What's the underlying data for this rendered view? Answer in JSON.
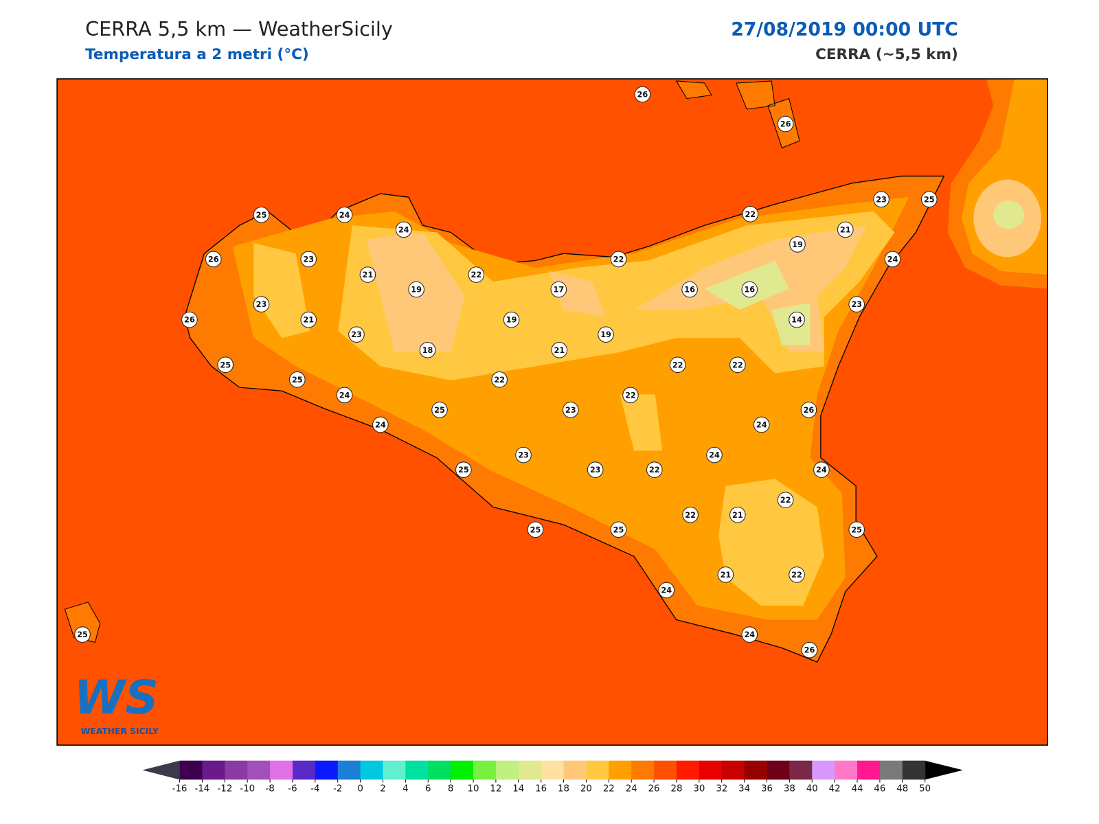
{
  "header": {
    "title": "CERRA 5,5 km — WeatherSicily",
    "subtitle": "Temperatura a 2 metri (°C)",
    "date": "27/08/2019 00:00 UTC",
    "model": "CERRA (~5,5 km)"
  },
  "stations": [
    26,
    26,
    25,
    24,
    24,
    22,
    23,
    25,
    21,
    19,
    26,
    23,
    21,
    22,
    22,
    24,
    19,
    17,
    16,
    16,
    23,
    23,
    26,
    21,
    19,
    14,
    23,
    19,
    18,
    21,
    25,
    22,
    22,
    25,
    22,
    24,
    22,
    25,
    23,
    26,
    24,
    24,
    24,
    23,
    25,
    23,
    22,
    24,
    22,
    22,
    21,
    25,
    25,
    25,
    21,
    22,
    24,
    24,
    26,
    25
  ],
  "colorbar": {
    "ticks": [
      -16,
      -14,
      -12,
      -10,
      -8,
      -6,
      -4,
      -2,
      0,
      2,
      4,
      6,
      8,
      10,
      12,
      14,
      16,
      18,
      20,
      22,
      24,
      26,
      28,
      30,
      32,
      34,
      36,
      38,
      40,
      42,
      44,
      46,
      48,
      50
    ],
    "colors": [
      "#3d0050",
      "#6a1a8a",
      "#8a3aa5",
      "#a050b8",
      "#e070e8",
      "#5a2ac8",
      "#0a1aff",
      "#1a80d8",
      "#00c8e0",
      "#60f0d0",
      "#00e0a0",
      "#00e060",
      "#00f000",
      "#78f040",
      "#c0f080",
      "#e0e890",
      "#ffe0a0",
      "#ffc878",
      "#ffc840",
      "#ffa000",
      "#ff7a00",
      "#ff5000",
      "#ff1a00",
      "#e80000",
      "#c80000",
      "#980000",
      "#700018",
      "#7a2848",
      "#d898ff",
      "#ff78c8",
      "#ff1890",
      "#7a7a7a",
      "#333333"
    ],
    "under_color": "#3a3a4a",
    "over_color": "#000000"
  },
  "logo": {
    "mark": "WS",
    "text": "WEATHER SICILY"
  }
}
